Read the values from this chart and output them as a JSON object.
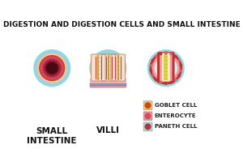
{
  "title": "DIGESTION AND DIGESTION CELLS AND SMALL INTESTINE",
  "title_fontsize": 6.5,
  "background_color": "#ffffff",
  "circle_bg_color": "#8dd8e2",
  "labels": [
    "SMALL\nINTESTINE",
    "VILLI"
  ],
  "label_fontsize": 7.5,
  "legend_items": [
    {
      "label": "GOBLET CELL",
      "face": "#f5c96a",
      "circle": "#c84820"
    },
    {
      "label": "ENTEROCYTE",
      "face": "#f59090",
      "circle": "#d05060"
    },
    {
      "label": "PANETH CELL",
      "face": "#a8dce8",
      "circle": "#c03030"
    }
  ],
  "legend_fontsize": 5.0,
  "c1": [
    0.14,
    0.6
  ],
  "c2": [
    0.43,
    0.6
  ],
  "c3": [
    0.73,
    0.6
  ],
  "cr": 0.145
}
